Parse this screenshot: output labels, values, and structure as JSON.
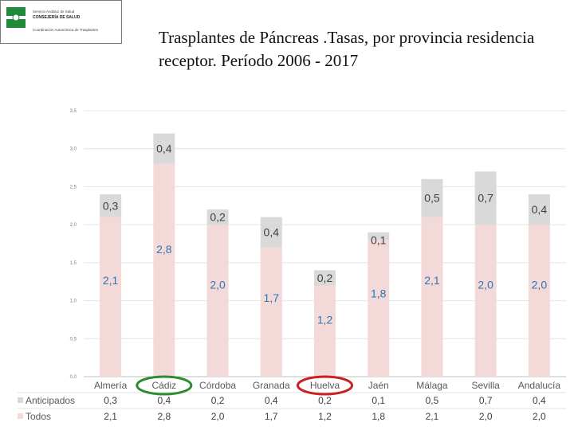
{
  "logo": {
    "line1": "Servicio Andaluz de Salud",
    "line2": "CONSEJERÍA DE SALUD",
    "line3": "Coordinación Autonómica de Trasplantes"
  },
  "title": "Trasplantes de Páncreas .Tasas, por provincia residencia receptor. Período 2006 - 2017",
  "colors": {
    "anticipados": "#d9d9d9",
    "todos": "#f4d9d9",
    "value_blue": "#2e75b6",
    "value_dark": "#404040",
    "highlight_green": "#2e8b2e",
    "highlight_red": "#cc1f1f"
  },
  "chart_data": {
    "type": "bar",
    "stacked": true,
    "categories": [
      "Almería",
      "Cádiz",
      "Córdoba",
      "Granada",
      "Huelva",
      "Jaén",
      "Málaga",
      "Sevilla",
      "Andalucía"
    ],
    "series": [
      {
        "name": "Todos",
        "values": [
          2.1,
          2.8,
          2.0,
          1.7,
          1.2,
          1.8,
          2.1,
          2.0,
          2.0
        ],
        "labels": [
          "2,1",
          "2,8",
          "2,0",
          "1,7",
          "1,2",
          "1,8",
          "2,1",
          "2,0",
          "2,0"
        ]
      },
      {
        "name": "Anticipados",
        "values": [
          0.3,
          0.4,
          0.2,
          0.4,
          0.2,
          0.1,
          0.5,
          0.7,
          0.4
        ],
        "labels": [
          "0,3",
          "0,4",
          "0,2",
          "0,4",
          "0,2",
          "0,1",
          "0,5",
          "0,7",
          "0,4"
        ]
      }
    ],
    "ylim": [
      0,
      3.5
    ],
    "yticks": [
      0,
      0.5,
      1.0,
      1.5,
      2.0,
      2.5,
      3.0,
      3.5
    ],
    "ytick_labels": [
      "0,0",
      "0,5",
      "1,0",
      "1,5",
      "2,0",
      "2,5",
      "3,0",
      "3,5"
    ],
    "grid": true,
    "legend": "data-table-below",
    "highlighted": [
      {
        "category": "Cádiz",
        "color": "green"
      },
      {
        "category": "Huelva",
        "color": "red"
      }
    ]
  }
}
